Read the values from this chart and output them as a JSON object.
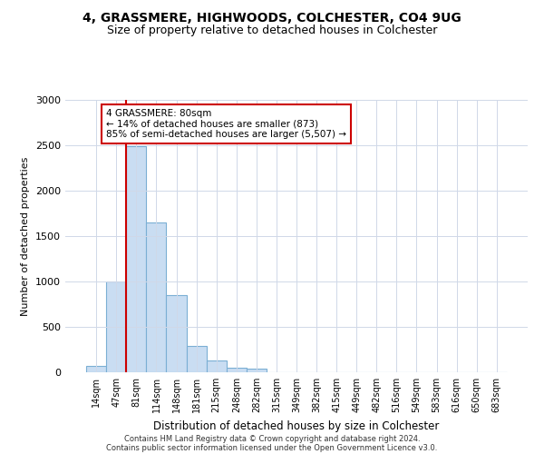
{
  "title_line1": "4, GRASSMERE, HIGHWOODS, COLCHESTER, CO4 9UG",
  "title_line2": "Size of property relative to detached houses in Colchester",
  "xlabel": "Distribution of detached houses by size in Colchester",
  "ylabel": "Number of detached properties",
  "categories": [
    "14sqm",
    "47sqm",
    "81sqm",
    "114sqm",
    "148sqm",
    "181sqm",
    "215sqm",
    "248sqm",
    "282sqm",
    "315sqm",
    "349sqm",
    "382sqm",
    "415sqm",
    "449sqm",
    "482sqm",
    "516sqm",
    "549sqm",
    "583sqm",
    "616sqm",
    "650sqm",
    "683sqm"
  ],
  "values": [
    75,
    1000,
    2490,
    1650,
    850,
    290,
    130,
    55,
    45,
    0,
    0,
    0,
    0,
    0,
    0,
    0,
    0,
    0,
    0,
    0,
    0
  ],
  "bar_color": "#c9ddf2",
  "bar_edge_color": "#7bafd4",
  "annotation_text": "4 GRASSMERE: 80sqm\n← 14% of detached houses are smaller (873)\n85% of semi-detached houses are larger (5,507) →",
  "annotation_box_color": "#ffffff",
  "annotation_box_edge_color": "#cc0000",
  "vline_color": "#cc0000",
  "vline_x_idx": 2,
  "ylim": [
    0,
    3000
  ],
  "yticks": [
    0,
    500,
    1000,
    1500,
    2000,
    2500,
    3000
  ],
  "grid_color": "#d0d8e8",
  "background_color": "#ffffff",
  "footer_line1": "Contains HM Land Registry data © Crown copyright and database right 2024.",
  "footer_line2": "Contains public sector information licensed under the Open Government Licence v3.0."
}
